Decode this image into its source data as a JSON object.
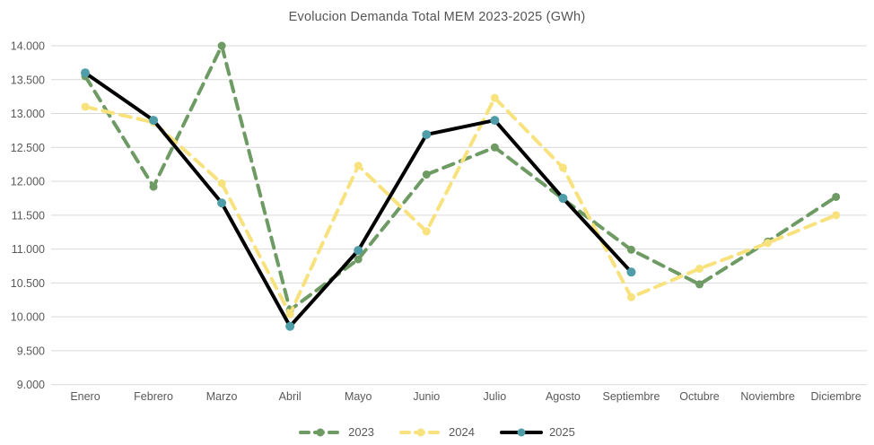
{
  "chart_data": {
    "type": "line",
    "title": "Evolucion Demanda Total MEM 2023-2025 (GWh)",
    "ylabel": "",
    "xlabel": "",
    "categories": [
      "Enero",
      "Febrero",
      "Marzo",
      "Abril",
      "Mayo",
      "Junio",
      "Julio",
      "Agosto",
      "Septiembre",
      "Octubre",
      "Noviembre",
      "Diciembre"
    ],
    "ylim": [
      9000,
      14000
    ],
    "y_tick_step": 500,
    "grid": true,
    "legend_position": "bottom",
    "colors": {
      "grid": "#d9d9d9",
      "axis_text": "#595959",
      "title_text": "#555555",
      "background": "#ffffff"
    },
    "y_ticks": [
      {
        "value": 14000,
        "label": "14.000"
      },
      {
        "value": 13500,
        "label": "13.500"
      },
      {
        "value": 13000,
        "label": "13.000"
      },
      {
        "value": 12500,
        "label": "12.500"
      },
      {
        "value": 12000,
        "label": "12.000"
      },
      {
        "value": 11500,
        "label": "11.500"
      },
      {
        "value": 11000,
        "label": "11.000"
      },
      {
        "value": 10500,
        "label": "10.500"
      },
      {
        "value": 10000,
        "label": "10.000"
      },
      {
        "value": 9500,
        "label": "9.500"
      },
      {
        "value": 9000,
        "label": "9.000"
      }
    ],
    "series": [
      {
        "name": "2023",
        "color": "#6d9b63",
        "marker_color": "#6d9b63",
        "line_style": "dashed",
        "marker": "circle",
        "values": [
          13550,
          11920,
          14000,
          10100,
          10850,
          12100,
          12500,
          11740,
          10990,
          10480,
          11110,
          11770
        ]
      },
      {
        "name": "2024",
        "color": "#f8e27d",
        "marker_color": "#f8e27d",
        "line_style": "dashed",
        "marker": "circle",
        "values": [
          13100,
          12870,
          11970,
          10040,
          12230,
          11260,
          13230,
          12200,
          10290,
          10710,
          11090,
          11500
        ]
      },
      {
        "name": "2025",
        "color": "#000000",
        "marker_color": "#4e9da9",
        "line_style": "solid",
        "marker": "circle",
        "values": [
          13600,
          12900,
          11680,
          9860,
          10980,
          12690,
          12900,
          11750,
          10660
        ]
      }
    ]
  }
}
